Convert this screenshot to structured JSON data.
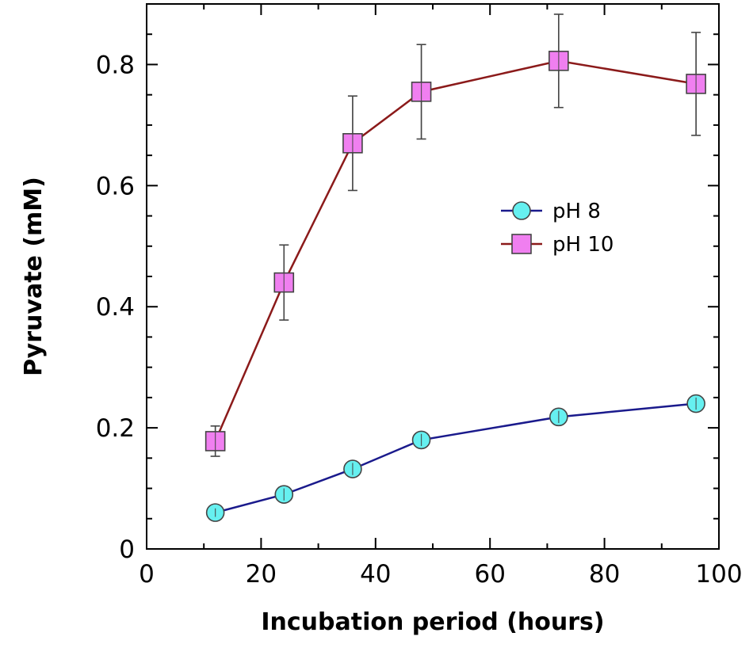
{
  "chart_data": {
    "type": "line",
    "title": "",
    "xlabel": "Incubation period (hours)",
    "ylabel": "Pyruvate (mM)",
    "xlim": [
      0,
      100
    ],
    "ylim": [
      0,
      0.9
    ],
    "xticks": [
      0,
      20,
      40,
      60,
      80,
      100
    ],
    "xtick_labels": [
      "0",
      "20",
      "40",
      "60",
      "80",
      "100"
    ],
    "yticks": [
      0,
      0.2,
      0.4,
      0.6,
      0.8
    ],
    "ytick_labels": [
      "0",
      "0.2",
      "0.4",
      "0.6",
      "0.8"
    ],
    "grid": false,
    "legend_position": "center-right",
    "x": [
      12,
      24,
      36,
      48,
      72,
      96
    ],
    "series": [
      {
        "name": "pH 8",
        "marker": "circle",
        "line_color": "#1a1a8c",
        "marker_color": "#66f0f0",
        "values": [
          0.06,
          0.09,
          0.132,
          0.18,
          0.218,
          0.24
        ],
        "errors": [
          0.007,
          0.01,
          0.01,
          0.01,
          0.01,
          0.01
        ]
      },
      {
        "name": "pH 10",
        "marker": "square",
        "line_color": "#8b1a1a",
        "marker_color": "#f07ff0",
        "values": [
          0.178,
          0.44,
          0.67,
          0.755,
          0.806,
          0.768
        ],
        "errors": [
          0.025,
          0.062,
          0.078,
          0.078,
          0.077,
          0.085
        ]
      }
    ]
  }
}
